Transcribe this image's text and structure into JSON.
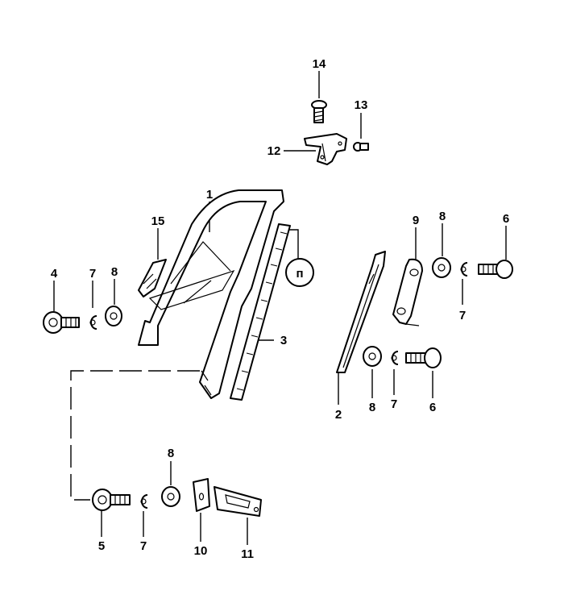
{
  "diagram": {
    "callouts": [
      {
        "id": "c1",
        "label": "1"
      },
      {
        "id": "c2",
        "label": "2"
      },
      {
        "id": "c3",
        "label": "3"
      },
      {
        "id": "c4",
        "label": "4"
      },
      {
        "id": "c5",
        "label": "5"
      },
      {
        "id": "c6a",
        "label": "6"
      },
      {
        "id": "c6b",
        "label": "6"
      },
      {
        "id": "c7a",
        "label": "7"
      },
      {
        "id": "c7b",
        "label": "7"
      },
      {
        "id": "c7c",
        "label": "7"
      },
      {
        "id": "c7d",
        "label": "7"
      },
      {
        "id": "c8a",
        "label": "8"
      },
      {
        "id": "c8b",
        "label": "8"
      },
      {
        "id": "c8c",
        "label": "8"
      },
      {
        "id": "c8d",
        "label": "8"
      },
      {
        "id": "c9",
        "label": "9"
      },
      {
        "id": "c10",
        "label": "10"
      },
      {
        "id": "c11",
        "label": "11"
      },
      {
        "id": "c12",
        "label": "12"
      },
      {
        "id": "c13",
        "label": "13"
      },
      {
        "id": "c14",
        "label": "14"
      },
      {
        "id": "c15",
        "label": "15"
      }
    ],
    "detail_marker": "п"
  }
}
